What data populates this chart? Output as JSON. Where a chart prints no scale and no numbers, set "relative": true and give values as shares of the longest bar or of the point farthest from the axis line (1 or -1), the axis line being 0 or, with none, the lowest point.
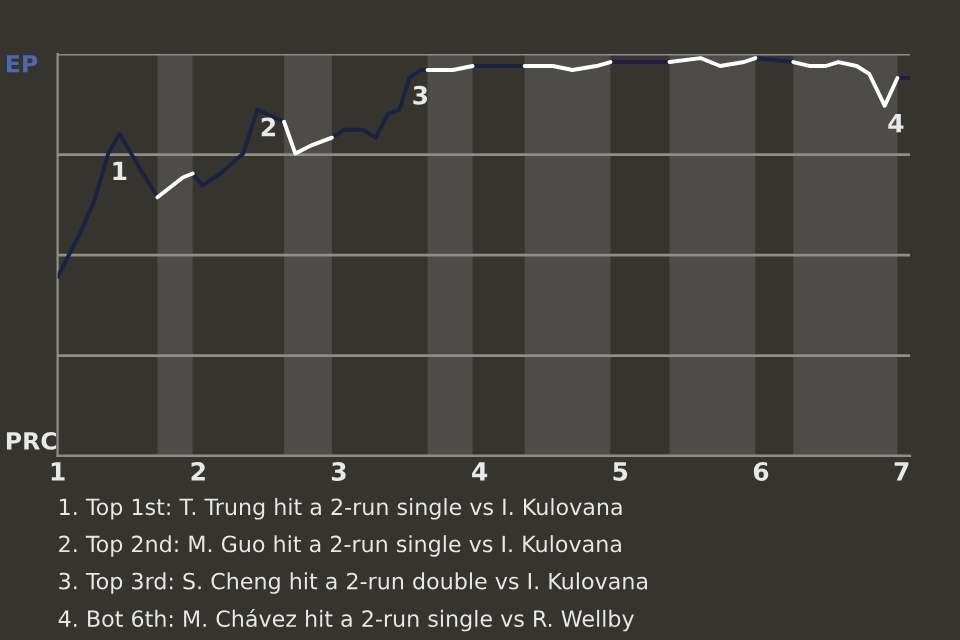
{
  "chart_data": {
    "type": "line",
    "relative": true,
    "xlim": [
      1,
      7.06
    ],
    "xticks": [
      1,
      2,
      3,
      4,
      5,
      6,
      7
    ],
    "grid": "y",
    "marker": "none",
    "line_style": "solid",
    "bands": [
      {
        "axis": "x",
        "from": 1.71,
        "to": 1.96,
        "color": "#4e4c49"
      },
      {
        "axis": "x",
        "from": 2.61,
        "to": 2.95,
        "color": "#4e4c49"
      },
      {
        "axis": "x",
        "from": 3.63,
        "to": 3.95,
        "color": "#4e4c49"
      },
      {
        "axis": "x",
        "from": 4.32,
        "to": 4.93,
        "color": "#4e4c49"
      },
      {
        "axis": "x",
        "from": 5.35,
        "to": 5.96,
        "color": "#4e4c49"
      },
      {
        "axis": "x",
        "from": 6.23,
        "to": 6.97,
        "color": "#4e4c49"
      }
    ],
    "series": [
      {
        "color": "#1b2240",
        "x": [
          1,
          1.16,
          1.26,
          1.36,
          1.44,
          1.59,
          1.71,
          1.8,
          1.96,
          2.03,
          2.16,
          2.32,
          2.42,
          2.61,
          2.8,
          2.95,
          3.04,
          3.17,
          3.26,
          3.35,
          3.43,
          3.5,
          3.58,
          3.63,
          3.8,
          3.95,
          4.05,
          4.32,
          4.6,
          4.93,
          5.35,
          5.6,
          5.96,
          6.23,
          6.6,
          6.97,
          7.06
        ],
        "values": [
          0.45,
          0.56,
          0.64,
          0.76,
          0.81,
          0.72,
          0.65,
          null,
          0.71,
          0.68,
          0.71,
          0.76,
          0.87,
          0.84,
          null,
          0.8,
          0.82,
          0.82,
          0.8,
          0.86,
          0.87,
          0.95,
          0.97,
          0.97,
          null,
          0.98,
          0.98,
          0.98,
          null,
          0.99,
          0.99,
          null,
          1,
          0.99,
          null,
          0.95,
          0.95
        ]
      },
      {
        "color": "#ffffff",
        "x": [
          1.71,
          1.89,
          1.96,
          2.3,
          2.61,
          2.69,
          2.8,
          2.95,
          3.3,
          3.63,
          3.72,
          3.81,
          3.95,
          4.1,
          4.32,
          4.52,
          4.66,
          4.83,
          4.93,
          5.1,
          5.35,
          5.57,
          5.71,
          5.88,
          5.96,
          6.1,
          6.23,
          6.35,
          6.46,
          6.55,
          6.68,
          6.77,
          6.88,
          6.97
        ],
        "values": [
          0.65,
          0.7,
          0.71,
          null,
          0.84,
          0.76,
          0.78,
          0.8,
          null,
          0.97,
          0.97,
          0.97,
          0.98,
          null,
          0.98,
          0.98,
          0.97,
          0.98,
          0.99,
          null,
          0.99,
          1,
          0.98,
          0.99,
          1,
          null,
          0.99,
          0.98,
          0.98,
          0.99,
          0.98,
          0.96,
          0.88,
          0.95
        ]
      }
    ],
    "annotations": [
      {
        "text": "1",
        "x": 1.36,
        "y": 0.76
      },
      {
        "text": "2",
        "x": 2.42,
        "y": 0.87
      },
      {
        "text": "3",
        "x": 3.5,
        "y": 0.95
      },
      {
        "text": "4",
        "x": 6.88,
        "y": 0.88
      },
      "EP",
      "PRC",
      "1. Top 1st: T. Trung hit a 2-run single vs I. Kulovana",
      "2. Top 2nd: M. Guo hit a 2-run single vs I. Kulovana",
      "3. Top 3rd: S. Cheng hit a 2-run double vs I. Kulovana",
      "4. Bot 6th: M. Chávez hit a 2-run single vs R. Wellby"
    ]
  }
}
